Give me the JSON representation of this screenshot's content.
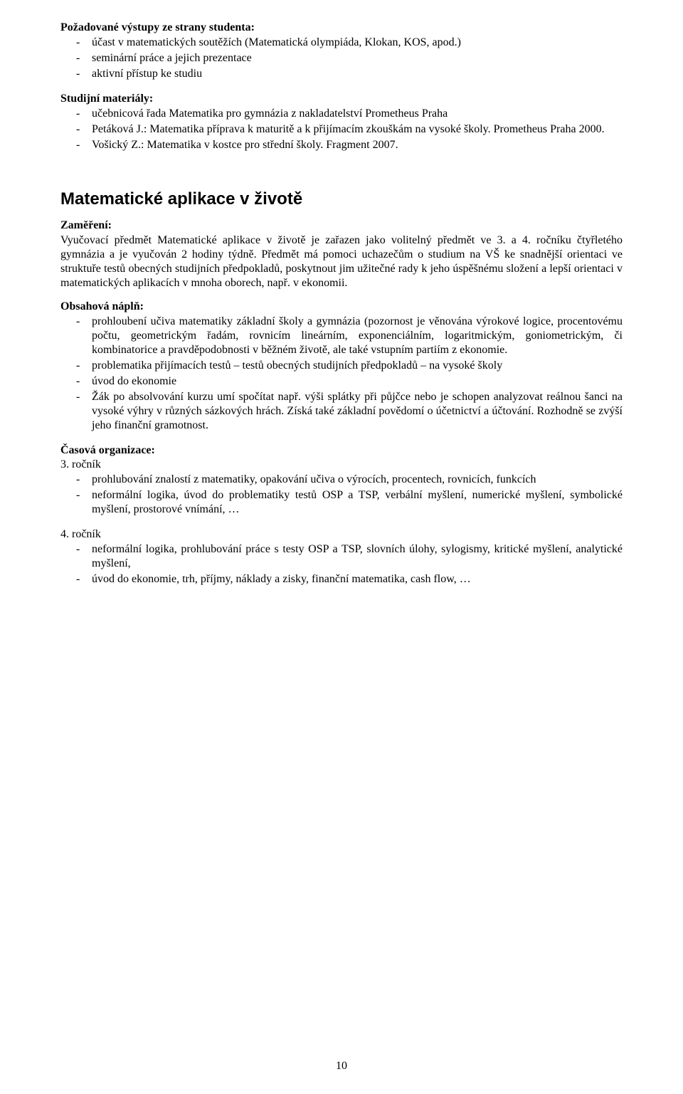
{
  "colors": {
    "background": "#ffffff",
    "text": "#000000"
  },
  "typography": {
    "body_font": "Times New Roman",
    "body_size_pt": 12,
    "heading_font": "Arial",
    "heading_size_pt": 18,
    "heading_weight": "bold"
  },
  "sec1": {
    "title": "Požadované výstupy ze strany studenta:",
    "items": {
      "0": "účast v matematických soutěžích (Matematická olympiáda, Klokan, KOS, apod.)",
      "1": "seminární práce a jejich prezentace",
      "2": "aktivní přístup ke studiu"
    }
  },
  "sec2": {
    "title": "Studijní materiály:",
    "items": {
      "0": "učebnicová řada Matematika pro gymnázia z nakladatelství Prometheus Praha",
      "1": "Petáková J.: Matematika příprava k maturitě a k přijímacím zkouškám na vysoké školy. Prometheus Praha 2000.",
      "2": "Vošický Z.: Matematika v kostce pro střední školy. Fragment 2007."
    }
  },
  "main_heading": "Matematické aplikace v životě",
  "focus": {
    "title": "Zaměření:",
    "text": "Vyučovací předmět Matematické aplikace v životě je zařazen jako volitelný předmět ve 3. a 4. ročníku čtyřletého gymnázia a je vyučován 2 hodiny týdně. Předmět má pomoci uchazečům o studium na VŠ ke snadnější orientaci ve struktuře testů obecných studijních předpokladů, poskytnout jim užitečné rady k jeho úspěšnému složení a lepší orientaci v matematických aplikacích v mnoha oborech, např. v ekonomii."
  },
  "content": {
    "title": "Obsahová náplň:",
    "items": {
      "0": "prohloubení učiva matematiky základní školy a gymnázia (pozornost je věnována výrokové logice, procentovému počtu, geometrickým řadám, rovnicím lineárním, exponenciálním, logaritmickým, goniometrickým, či kombinatorice a pravděpodobnosti v běžném životě, ale také vstupním partiím z ekonomie.",
      "1": "problematika přijímacích testů – testů obecných studijních předpokladů – na vysoké školy",
      "2": "úvod do ekonomie",
      "3": "Žák po absolvování kurzu umí spočítat např. výši splátky při půjčce nebo je schopen analyzovat reálnou šanci na vysoké výhry v různých sázkových hrách. Získá také základní povědomí o účetnictví a účtování. Rozhodně se zvýší jeho finanční gramotnost."
    }
  },
  "time_org": {
    "title": "Časová organizace:",
    "year3": {
      "label": "3. ročník",
      "items": {
        "0": "prohlubování znalostí z matematiky, opakování učiva o výrocích, procentech, rovnicích, funkcích",
        "1": "neformální logika, úvod do problematiky testů OSP a TSP, verbální myšlení, numerické myšlení, symbolické myšlení, prostorové vnímání, …"
      }
    },
    "year4": {
      "label": "4. ročník",
      "items": {
        "0": "neformální logika, prohlubování práce s testy OSP a TSP, slovních úlohy, sylogismy, kritické myšlení, analytické myšlení,",
        "1": "úvod do ekonomie, trh, příjmy, náklady a zisky, finanční matematika, cash flow, …"
      }
    }
  },
  "page_number": "10"
}
